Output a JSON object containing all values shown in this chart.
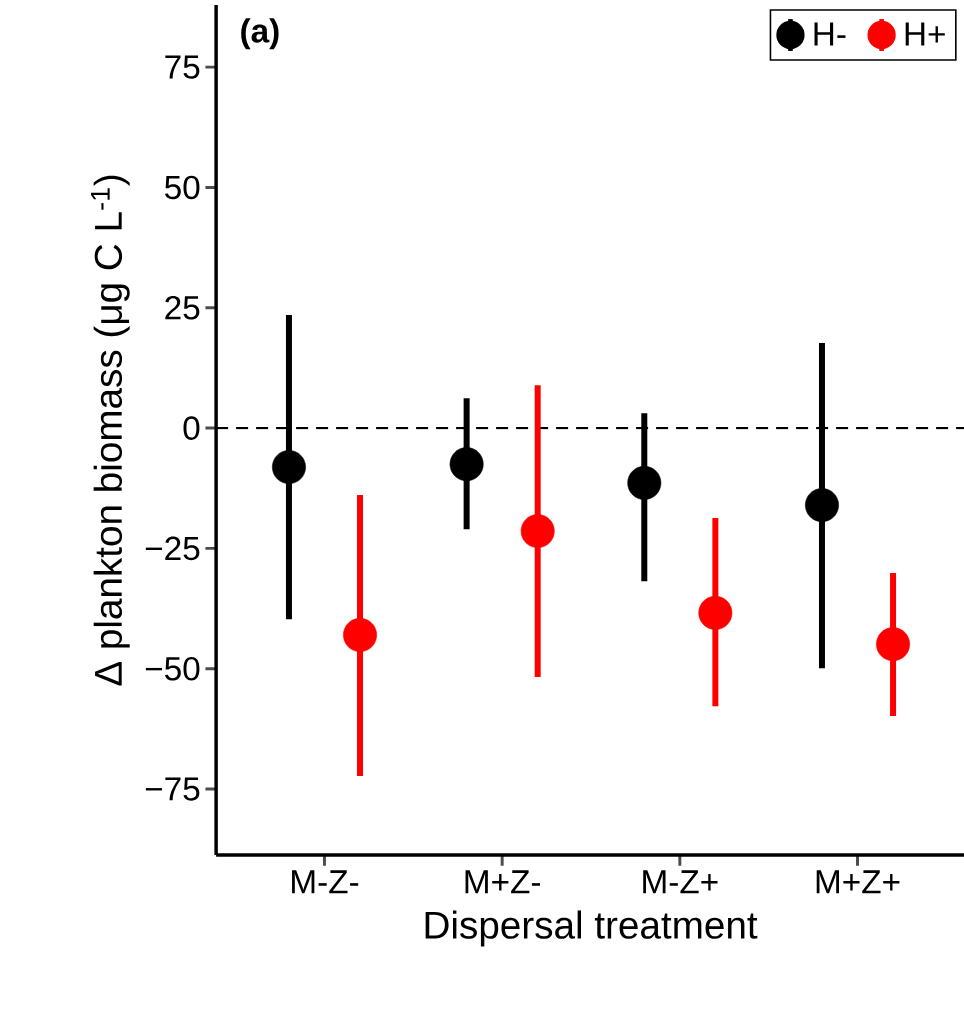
{
  "chart_data": {
    "type": "scatter",
    "xlabel": "Dispersal treatment",
    "ylabel": "Δ plankton biomass (μg C L$^{-1}$)",
    "annotations": [
      "(a)"
    ],
    "categories": [
      "M-Z-",
      "M+Z-",
      "M-Z+",
      "M+Z+"
    ],
    "series": [
      {
        "name": "H-",
        "color": "#000000",
        "values": [
          -8.1,
          -7.5,
          -11.4,
          -16.0
        ],
        "errors": [
          [
            -39.7,
            23.5
          ],
          [
            -21.0,
            6.2
          ],
          [
            -31.8,
            3.1
          ],
          [
            -49.9,
            17.7
          ]
        ]
      },
      {
        "name": "H+",
        "color": "#ff0000",
        "values": [
          -43.0,
          -21.4,
          -38.4,
          -44.9
        ],
        "errors": [
          [
            -72.3,
            -13.9
          ],
          [
            -51.7,
            8.9
          ],
          [
            -57.8,
            -18.7
          ],
          [
            -59.8,
            -30.1
          ]
        ]
      }
    ],
    "ylim": [
      -88.7,
      87.9
    ],
    "yticks": [
      {
        "value": -75,
        "label": "−75"
      },
      {
        "value": -50,
        "label": "−50"
      },
      {
        "value": -25,
        "label": "−25"
      },
      0,
      25,
      50,
      75
    ],
    "ref_lines": [
      {
        "axis": "y",
        "value": 0,
        "line_style": "dashed",
        "color": "#000000"
      }
    ],
    "legend": "top right",
    "marker": "circle"
  }
}
